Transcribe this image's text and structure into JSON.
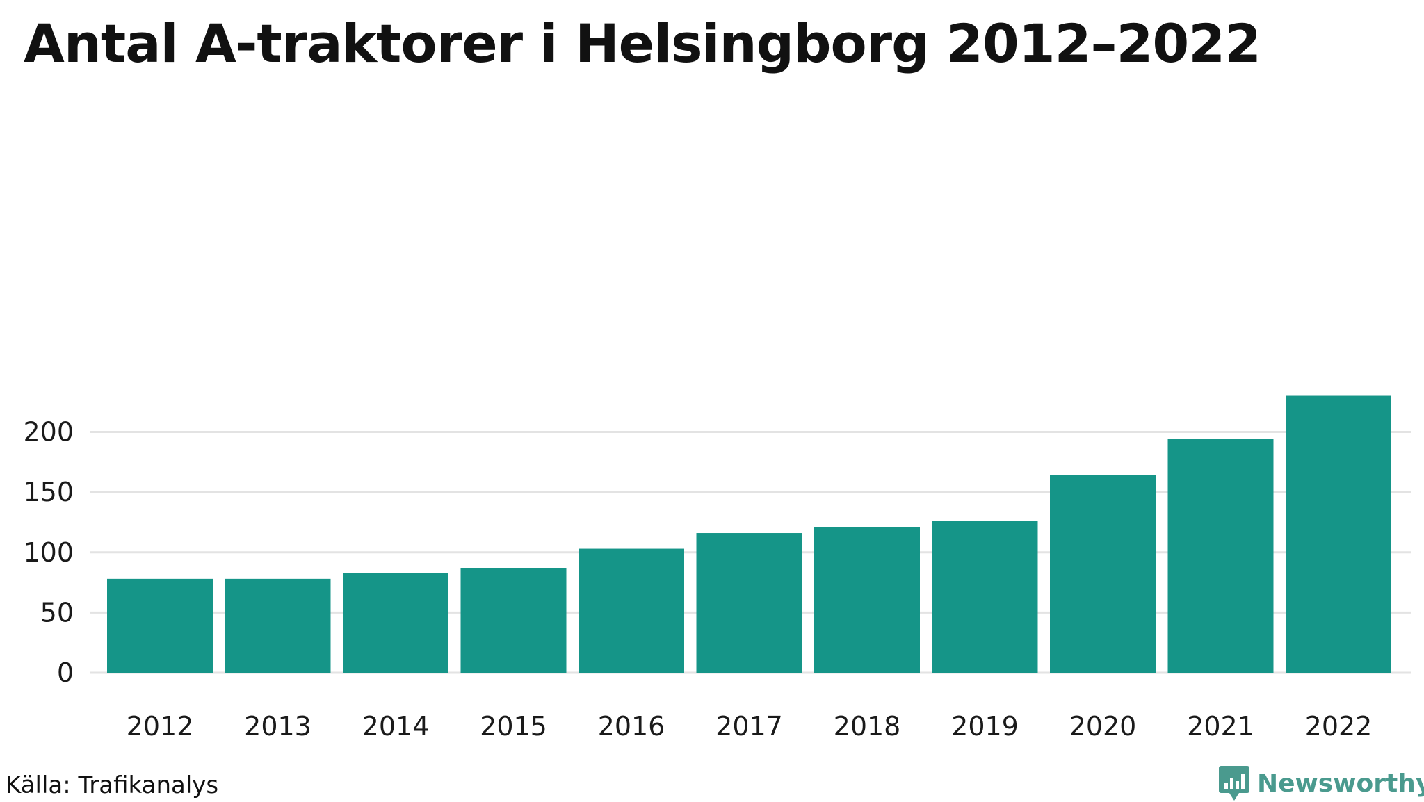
{
  "title": "Antal A-traktorer i Helsingborg 2012–2022",
  "source": "Källa: Trafikanalys",
  "brand": {
    "name": "Newsworthy",
    "icon": "newsworthy-logo-icon",
    "color": "#4a9a8e"
  },
  "colors": {
    "bar": "#159588",
    "grid": "#e3e3e3"
  },
  "chart_data": {
    "type": "bar",
    "categories": [
      "2012",
      "2013",
      "2014",
      "2015",
      "2016",
      "2017",
      "2018",
      "2019",
      "2020",
      "2021",
      "2022"
    ],
    "values": [
      78,
      78,
      83,
      87,
      103,
      116,
      121,
      126,
      164,
      194,
      230
    ],
    "ylim": [
      0,
      230
    ],
    "yticks": [
      0,
      50,
      100,
      150,
      200
    ],
    "grid": true,
    "legend": "none",
    "xlabel": "",
    "ylabel": ""
  }
}
